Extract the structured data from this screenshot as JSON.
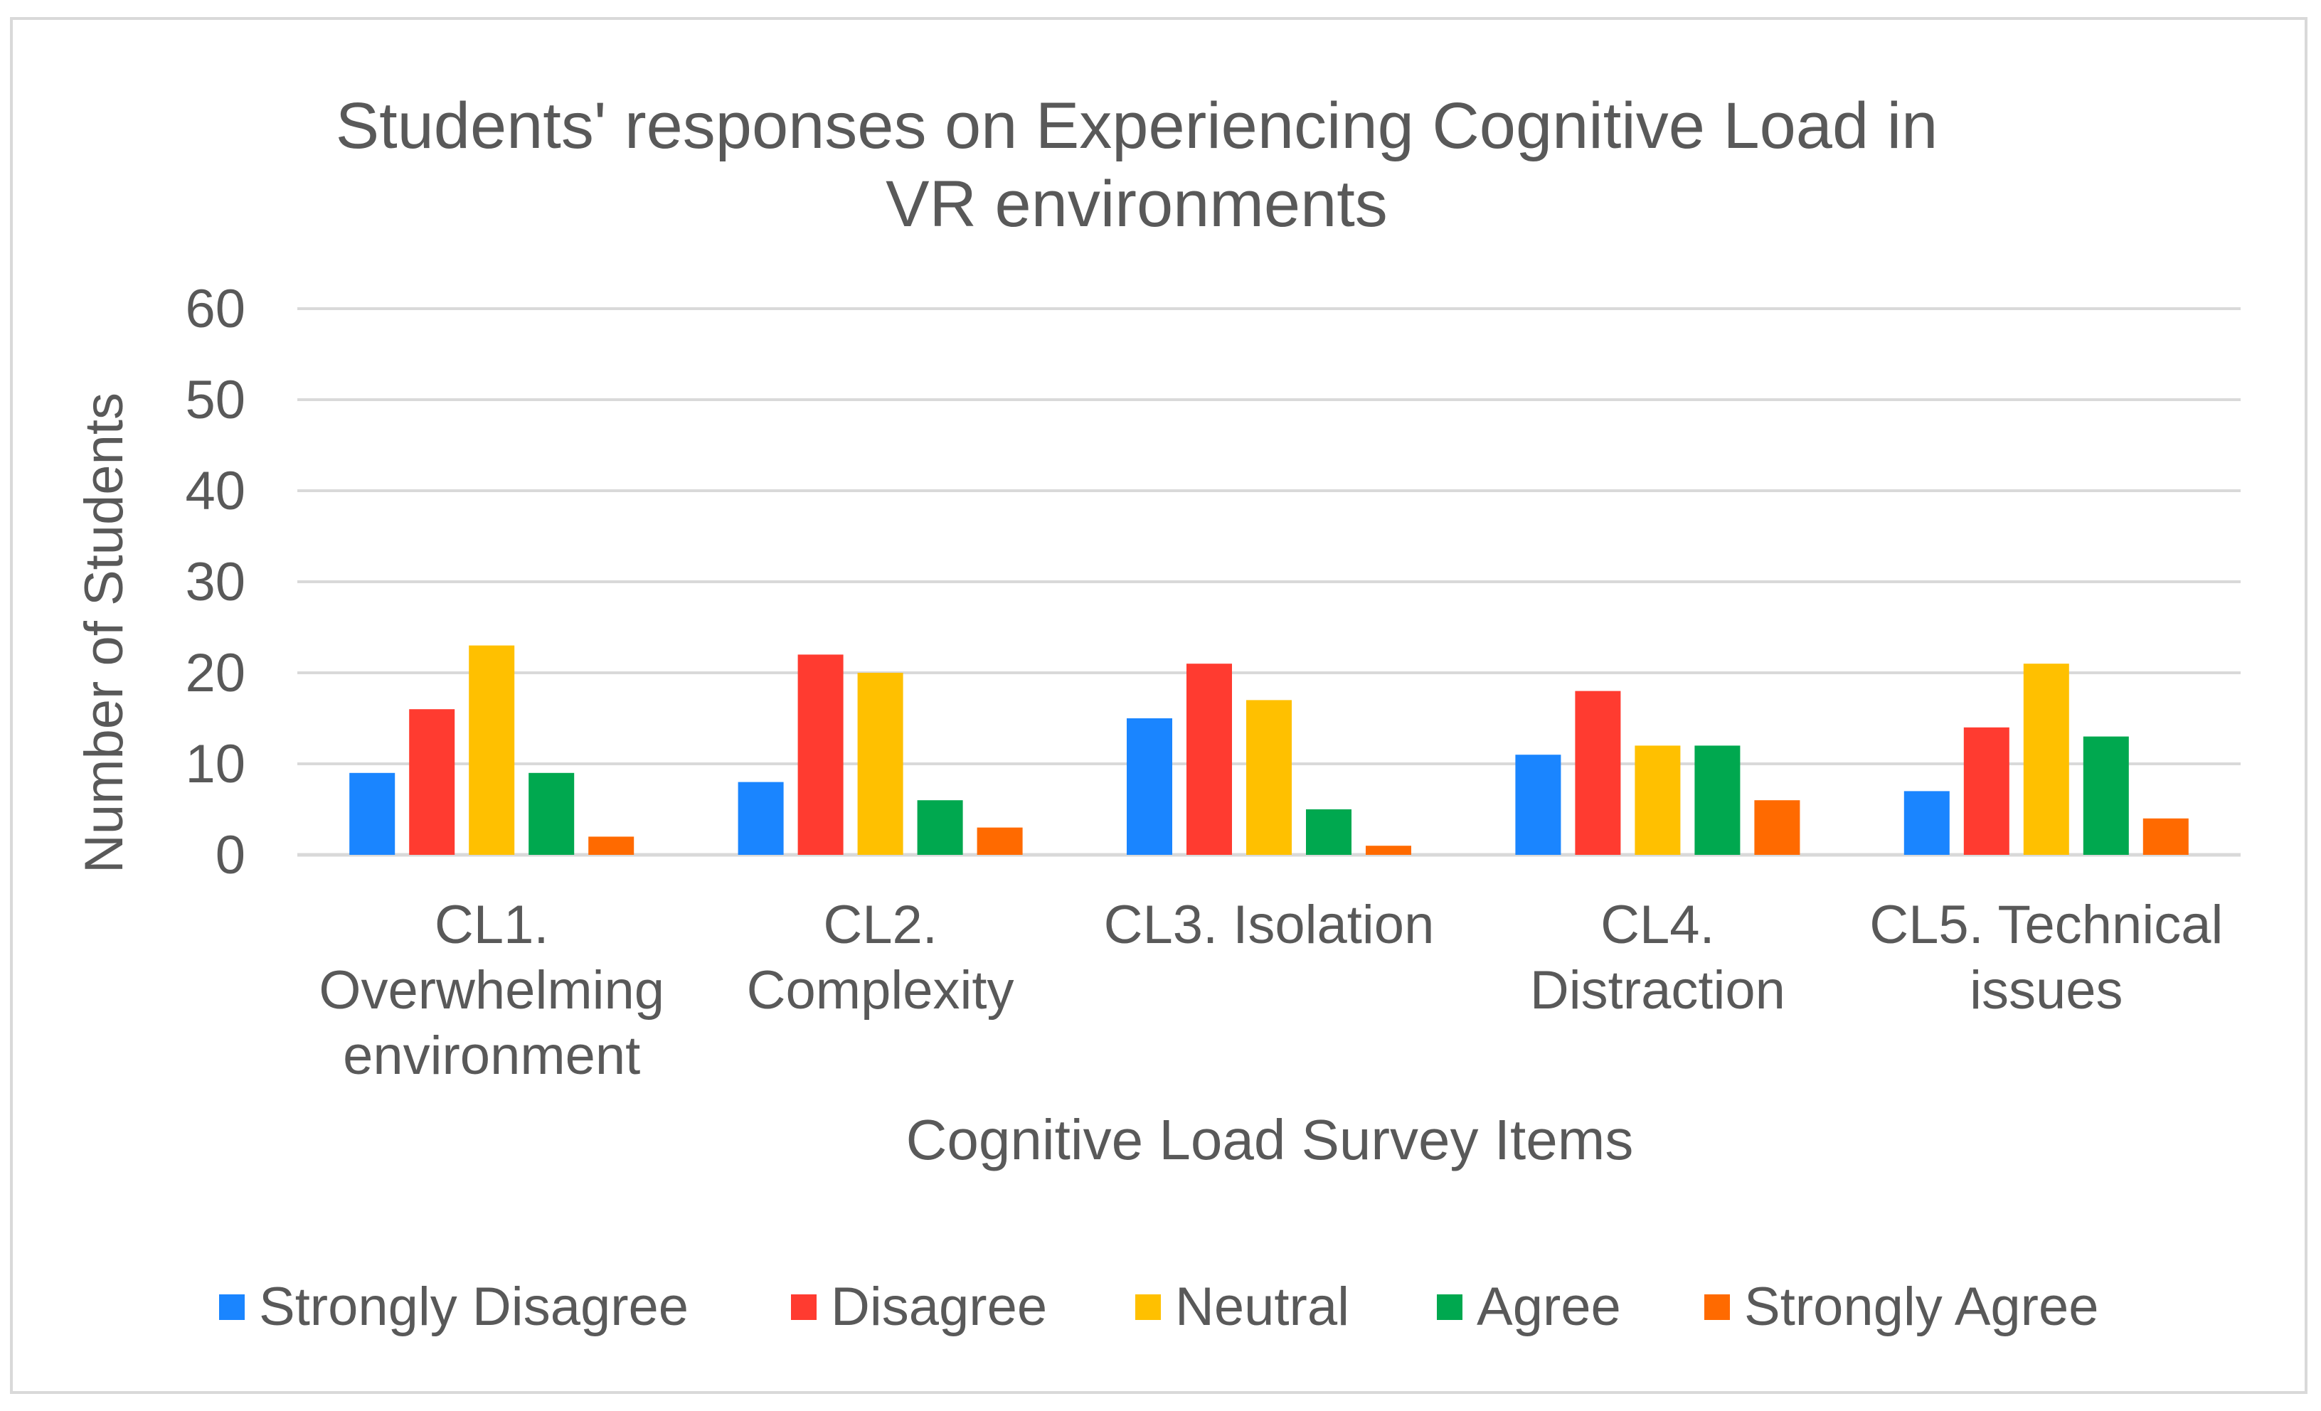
{
  "chart_data": {
    "type": "bar",
    "title_lines": [
      "Students' responses on Experiencing Cognitive Load in",
      "VR environments"
    ],
    "xlabel": "Cognitive Load Survey Items",
    "ylabel": "Number of Students",
    "ylim": [
      0,
      60
    ],
    "yticks": [
      0,
      10,
      20,
      30,
      40,
      50,
      60
    ],
    "grid": true,
    "legend_position": "bottom",
    "categories": [
      [
        "CL1.",
        "Overwhelming",
        "environment"
      ],
      [
        "CL2.",
        "Complexity"
      ],
      [
        "CL3.  Isolation"
      ],
      [
        "CL4.",
        "Distraction"
      ],
      [
        "CL5.  Technical",
        "issues"
      ]
    ],
    "series": [
      {
        "name": "Strongly Disagree",
        "color": "#1a85ff",
        "values": [
          9,
          8,
          15,
          11,
          7
        ]
      },
      {
        "name": "Disagree",
        "color": "#ff3b30",
        "values": [
          16,
          22,
          21,
          18,
          14
        ]
      },
      {
        "name": "Neutral",
        "color": "#ffc000",
        "values": [
          23,
          20,
          17,
          12,
          21
        ]
      },
      {
        "name": "Agree",
        "color": "#00a84f",
        "values": [
          9,
          6,
          5,
          12,
          13
        ]
      },
      {
        "name": "Strongly Agree",
        "color": "#ff6a00",
        "values": [
          2,
          3,
          1,
          6,
          4
        ]
      }
    ]
  }
}
